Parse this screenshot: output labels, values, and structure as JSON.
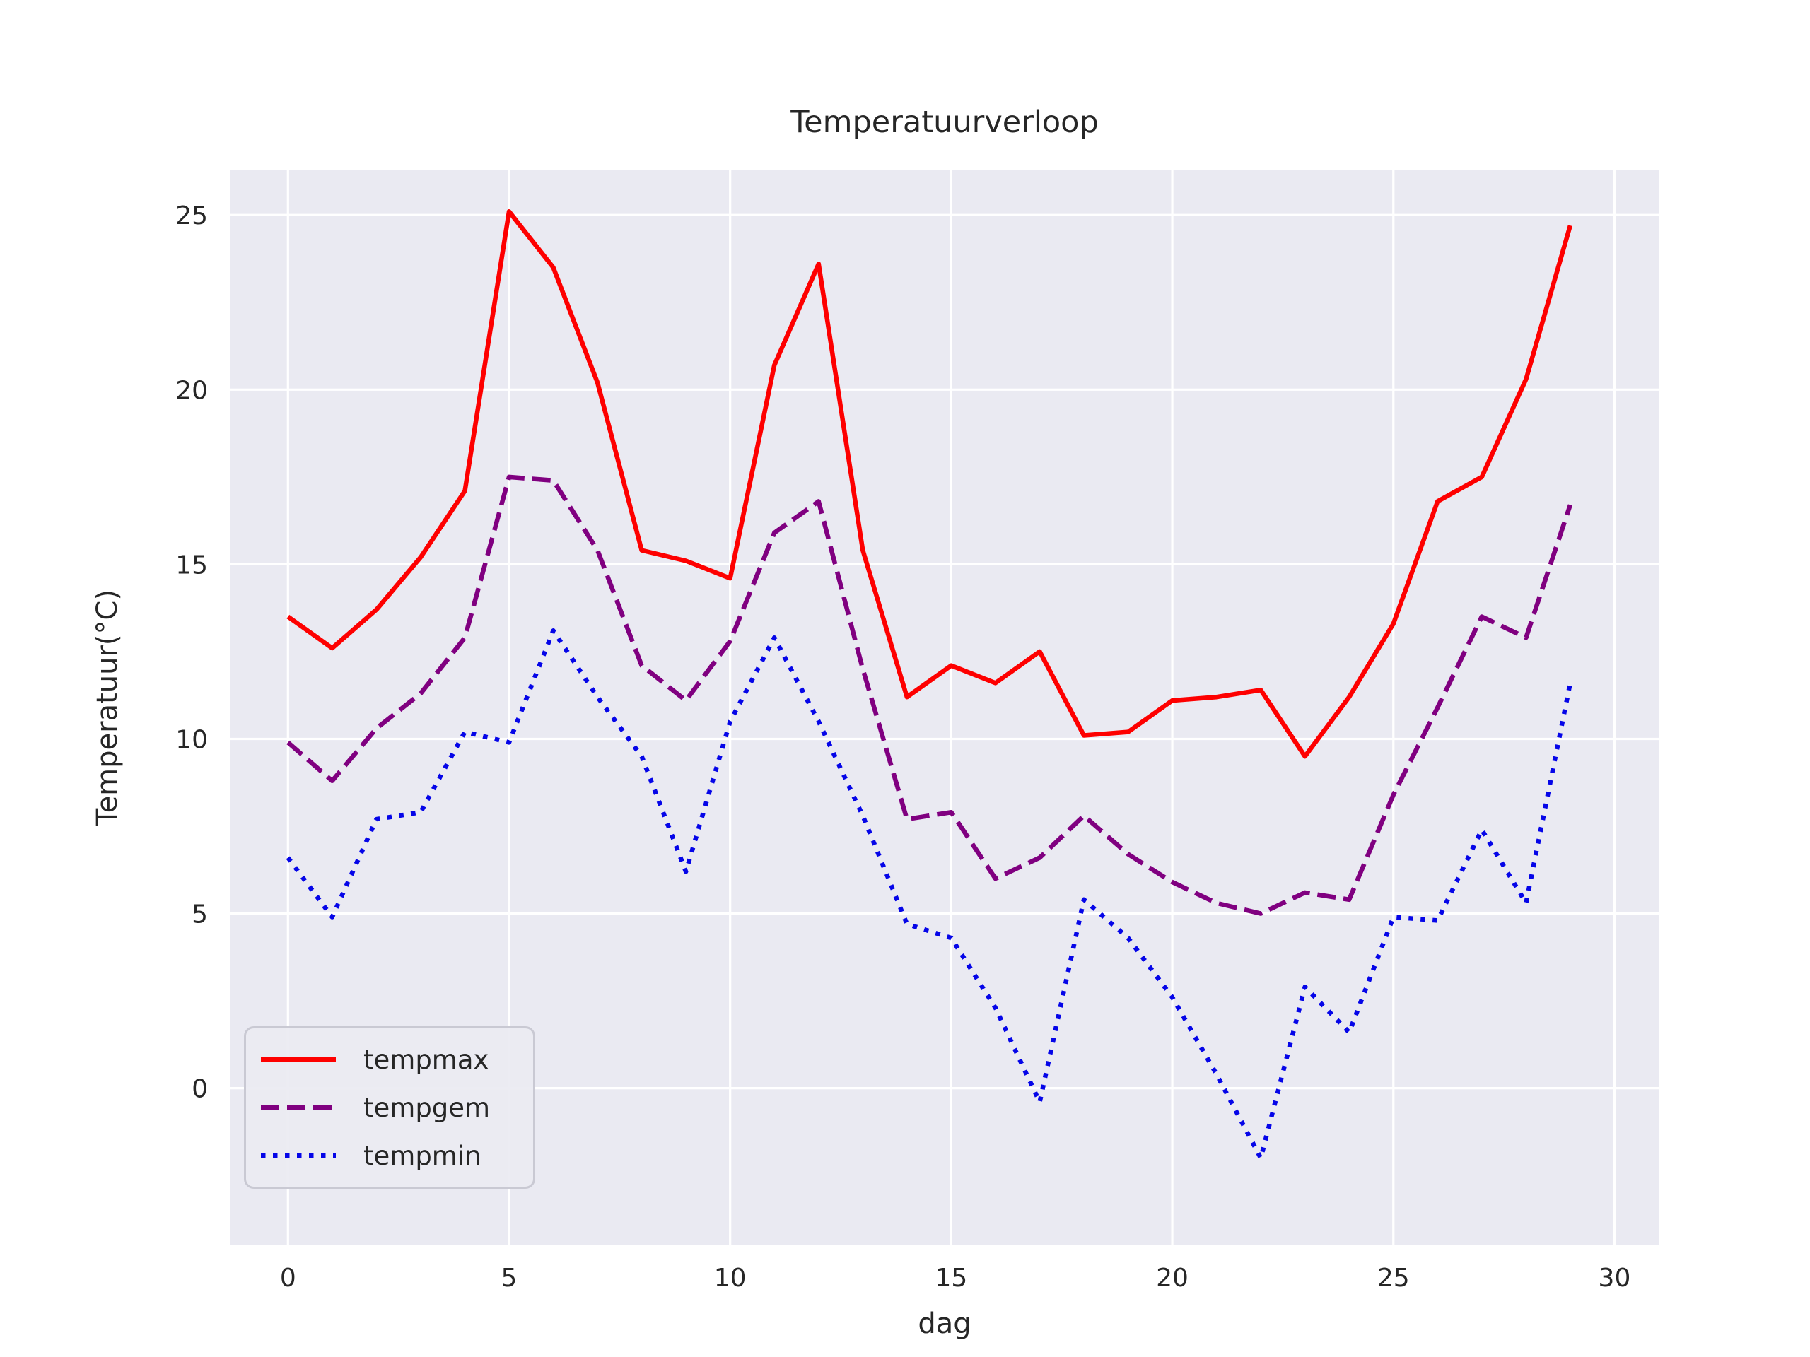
{
  "chart_data": {
    "type": "line",
    "title": "Temperatuurverloop",
    "xlabel": "dag",
    "ylabel": "Temperatuur(°C)",
    "x": [
      0,
      1,
      2,
      3,
      4,
      5,
      6,
      7,
      8,
      9,
      10,
      11,
      12,
      13,
      14,
      15,
      16,
      17,
      18,
      19,
      20,
      21,
      22,
      23,
      24,
      25,
      26,
      27,
      28,
      29
    ],
    "series": [
      {
        "name": "tempmax",
        "color": "#fe0000",
        "style": "solid",
        "values": [
          13.5,
          12.6,
          13.7,
          15.2,
          17.1,
          25.1,
          23.5,
          20.2,
          15.4,
          15.1,
          14.6,
          20.7,
          23.6,
          15.4,
          11.2,
          12.1,
          11.6,
          12.5,
          10.1,
          10.2,
          11.1,
          11.2,
          11.4,
          9.5,
          11.2,
          13.3,
          16.8,
          17.5,
          20.3,
          24.7
        ]
      },
      {
        "name": "tempgem",
        "color": "#800080",
        "style": "dashed",
        "values": [
          9.9,
          8.8,
          10.3,
          11.3,
          12.9,
          17.5,
          17.4,
          15.4,
          12.1,
          11.1,
          12.8,
          15.9,
          16.8,
          12.0,
          7.7,
          7.9,
          6.0,
          6.6,
          7.8,
          6.7,
          5.9,
          5.3,
          5.0,
          5.6,
          5.4,
          8.4,
          10.9,
          13.5,
          12.9,
          16.7
        ]
      },
      {
        "name": "tempmin",
        "color": "#0505e8",
        "style": "dotted",
        "values": [
          6.6,
          4.9,
          7.7,
          7.9,
          10.2,
          9.9,
          13.1,
          11.2,
          9.5,
          6.2,
          10.5,
          12.9,
          10.5,
          7.8,
          4.7,
          4.3,
          2.3,
          -0.4,
          5.4,
          4.3,
          2.6,
          0.4,
          -2.0,
          2.9,
          1.6,
          4.9,
          4.8,
          7.4,
          5.3,
          11.6
        ]
      }
    ],
    "xticks": [
      0,
      5,
      10,
      15,
      20,
      25,
      30
    ],
    "yticks": [
      0,
      5,
      10,
      15,
      20,
      25
    ],
    "xlim": [
      -1.3,
      31.0
    ],
    "ylim": [
      -4.5,
      26.3
    ],
    "grid": true,
    "legend_position": "lower left",
    "plot_bg": "#eaeaf2",
    "grid_color": "#ffffff",
    "text_color": "#262626"
  }
}
